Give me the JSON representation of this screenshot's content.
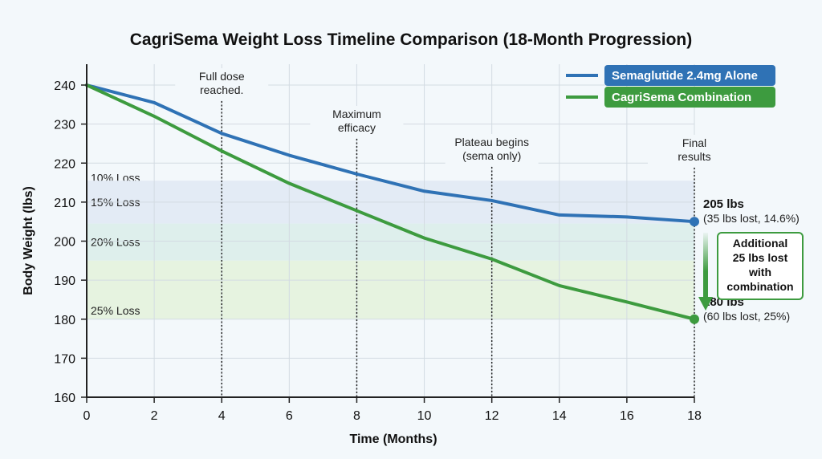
{
  "chart_data": {
    "type": "line",
    "title": "CagriSema Weight Loss Timeline Comparison (18-Month Progression)",
    "xlabel": "Time (Months)",
    "ylabel": "Body Weight (lbs)",
    "xlim": [
      0,
      18
    ],
    "ylim": [
      160,
      240
    ],
    "xticks": [
      0,
      2,
      4,
      6,
      8,
      10,
      12,
      14,
      16,
      18
    ],
    "yticks": [
      160,
      170,
      180,
      190,
      200,
      210,
      220,
      230,
      240
    ],
    "grid": true,
    "legend_position": "top-right",
    "x": [
      0,
      2,
      4,
      6,
      8,
      10,
      12,
      14,
      16,
      18
    ],
    "series": [
      {
        "name": "Semaglutide 2.4mg Alone",
        "color": "#2f72b5",
        "values": [
          240,
          235.5,
          227.6,
          222,
          217.2,
          212.8,
          210.4,
          206.7,
          206.2,
          205
        ]
      },
      {
        "name": "CagriSema Combination",
        "color": "#3d9b3f",
        "values": [
          240,
          232,
          223.1,
          214.8,
          207.8,
          200.8,
          195.4,
          188.6,
          184.4,
          180
        ]
      }
    ],
    "bands": [
      {
        "label": "10% Loss",
        "from": 216,
        "to": 216,
        "color": "none"
      },
      {
        "label": "15% Loss",
        "from": 215.5,
        "to": 204.5,
        "color": "#e3ebf5"
      },
      {
        "label": "20% Loss",
        "from": 204.5,
        "to": 195,
        "color": "#deefec"
      },
      {
        "label": "25% Loss",
        "from": 195,
        "to": 180,
        "color": "#e6f3e0"
      }
    ],
    "annotations": [
      {
        "x": 4,
        "lines": [
          "Full dose",
          "reached."
        ]
      },
      {
        "x": 8,
        "lines": [
          "Maximum",
          "efficacy"
        ]
      },
      {
        "x": 12,
        "lines": [
          "Plateau begins",
          "(sema only)"
        ]
      },
      {
        "x": 18,
        "lines": [
          "Final",
          "results"
        ]
      }
    ],
    "end_labels": [
      {
        "value": "205 lbs",
        "detail": "(35 lbs lost, 14.6%)"
      },
      {
        "value": "180 lbs",
        "detail": "(60 lbs lost, 25%)"
      }
    ],
    "callout": [
      "Additional",
      "25 lbs lost",
      "with",
      "combination"
    ]
  }
}
